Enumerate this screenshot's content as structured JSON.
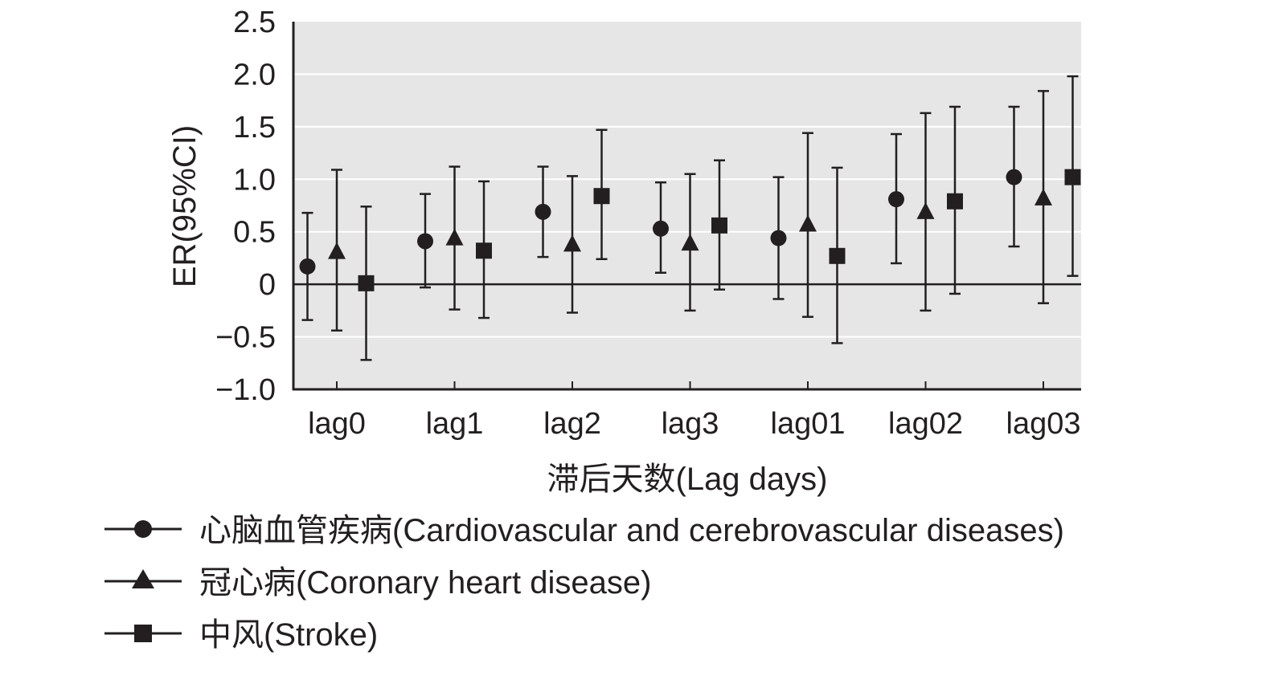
{
  "chart_data": {
    "type": "scatter",
    "categories": [
      "lag0",
      "lag1",
      "lag2",
      "lag3",
      "lag01",
      "lag02",
      "lag03"
    ],
    "xlabel": "滞后天数(Lag days)",
    "ylabel": "ER(95%CI)",
    "ylim": [
      -1.0,
      2.5
    ],
    "yticks": [
      "2.5",
      "2.0",
      "1.5",
      "1.0",
      "0.5",
      "0",
      "−0.5",
      "−1.0"
    ],
    "ytick_values": [
      2.5,
      2.0,
      1.5,
      1.0,
      0.5,
      0,
      -0.5,
      -1.0
    ],
    "grid": true,
    "legend_position": "bottom-left",
    "colors": {
      "plot_bg": "#e6e6e6",
      "grid": "#ffffff",
      "marks": "#231f20"
    },
    "series": [
      {
        "name": "心脑血管疾病(Cardiovascular and cerebrovascular diseases)",
        "marker": "circle",
        "values": [
          0.17,
          0.41,
          0.69,
          0.53,
          0.44,
          0.81,
          1.02
        ],
        "lower": [
          -0.34,
          -0.03,
          0.26,
          0.11,
          -0.14,
          0.2,
          0.36
        ],
        "upper": [
          0.68,
          0.86,
          1.12,
          0.97,
          1.02,
          1.43,
          1.69
        ]
      },
      {
        "name": "冠心病(Coronary heart disease)",
        "marker": "triangle",
        "values": [
          0.31,
          0.44,
          0.38,
          0.39,
          0.57,
          0.69,
          0.82
        ],
        "lower": [
          -0.44,
          -0.24,
          -0.27,
          -0.25,
          -0.31,
          -0.25,
          -0.18
        ],
        "upper": [
          1.09,
          1.12,
          1.03,
          1.05,
          1.44,
          1.63,
          1.84
        ]
      },
      {
        "name": "中风(Stroke)",
        "marker": "square",
        "values": [
          0.01,
          0.32,
          0.84,
          0.56,
          0.27,
          0.79,
          1.02
        ],
        "lower": [
          -0.72,
          -0.32,
          0.24,
          -0.05,
          -0.56,
          -0.09,
          0.08
        ],
        "upper": [
          0.74,
          0.98,
          1.47,
          1.18,
          1.11,
          1.69,
          1.98
        ]
      }
    ]
  }
}
